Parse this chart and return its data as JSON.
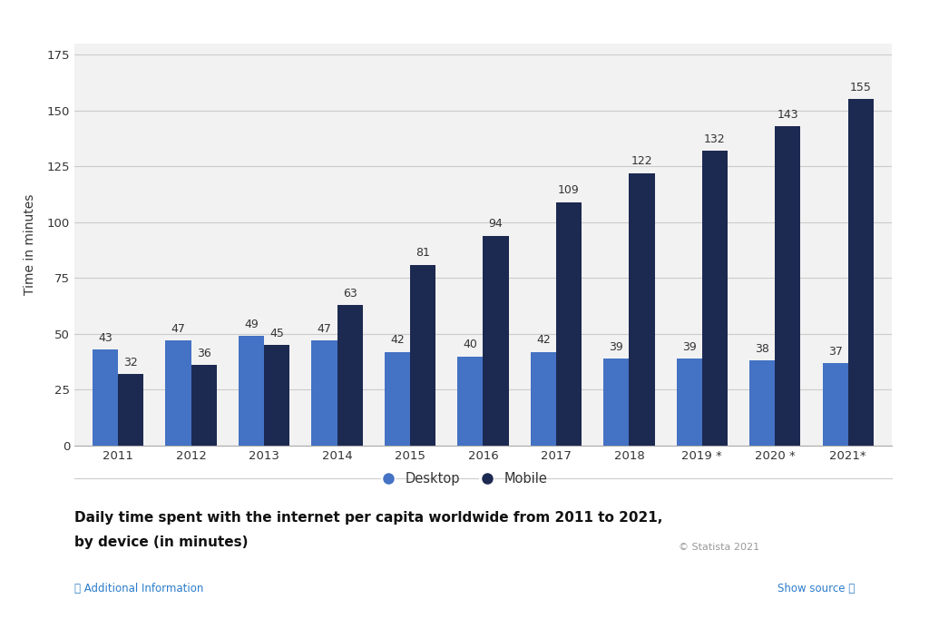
{
  "years": [
    "2011",
    "2012",
    "2013",
    "2014",
    "2015",
    "2016",
    "2017",
    "2018",
    "2019 *",
    "2020 *",
    "2021*"
  ],
  "desktop": [
    43,
    47,
    49,
    47,
    42,
    40,
    42,
    39,
    39,
    38,
    37
  ],
  "mobile": [
    32,
    36,
    45,
    63,
    81,
    94,
    109,
    122,
    132,
    143,
    155
  ],
  "desktop_color": "#4472C4",
  "mobile_color": "#1C2951",
  "background_color": "#ffffff",
  "plot_bg_color": "#f2f2f2",
  "ylabel": "Time in minutes",
  "ylim": [
    0,
    180
  ],
  "yticks": [
    0,
    25,
    50,
    75,
    100,
    125,
    150,
    175
  ],
  "title_line1": "Daily time spent with the internet per capita worldwide from 2011 to 2021,",
  "title_line2": "by device (in minutes)",
  "legend_desktop": "Desktop",
  "legend_mobile": "Mobile",
  "bar_width": 0.35,
  "annotation_fontsize": 9,
  "axis_label_fontsize": 10,
  "tick_fontsize": 9.5,
  "grid_color": "#cccccc",
  "statista_text": "© Statista 2021",
  "additional_info": "ⓘ Additional Information",
  "show_source": "Show source ⓘ"
}
